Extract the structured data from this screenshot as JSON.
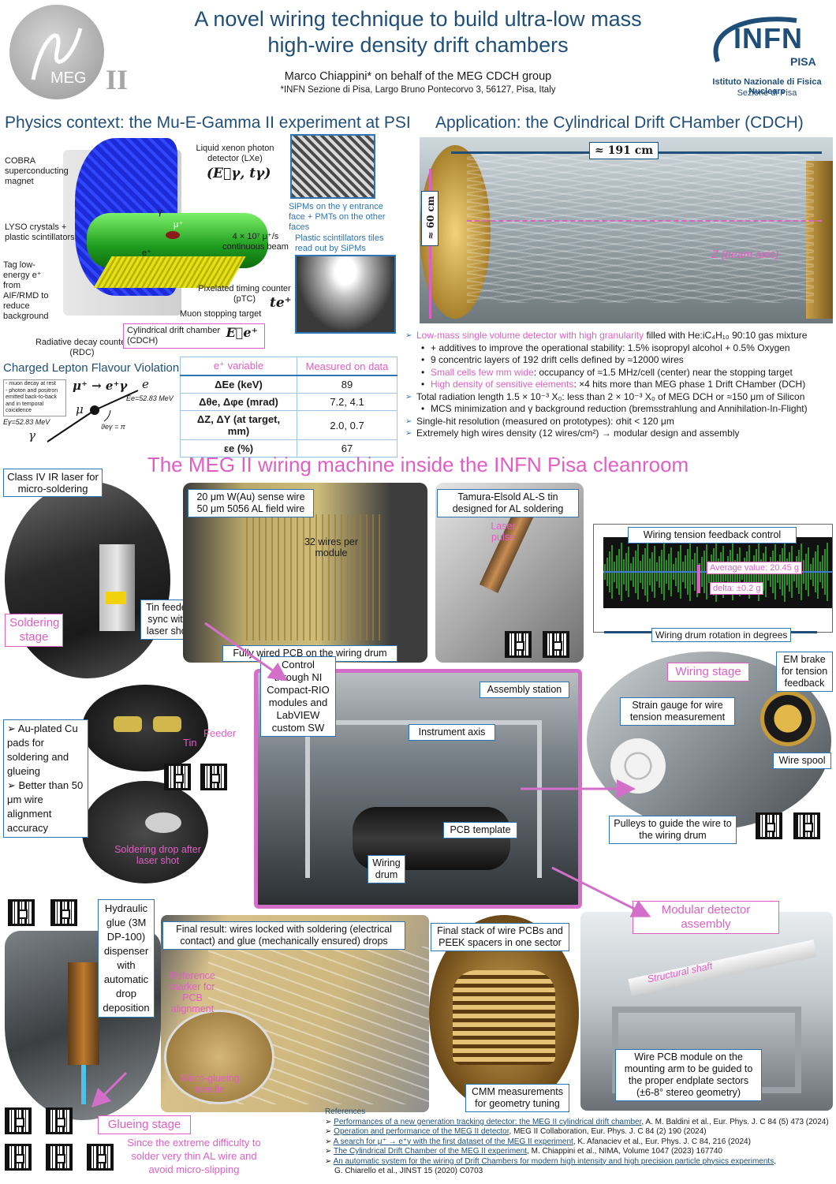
{
  "header": {
    "title_line1": "A novel wiring technique to build ultra-low mass",
    "title_line2": "high-wire density drift chambers",
    "author": "Marco Chiappini* on behalf of the MEG CDCH group",
    "affiliation": "*INFN Sezione di Pisa, Largo Bruno Pontecorvo 3, 56127, Pisa, Italy"
  },
  "logos": {
    "meg_text": "MEG",
    "meg_roman": "II",
    "infn_text": "INFN",
    "infn_pisa": "PISA",
    "infn_line1": "Istituto Nazionale di Fisica Nucleare",
    "infn_line2": "Sezione di Pisa"
  },
  "physics": {
    "heading": "Physics context: the Mu-E-Gamma II experiment at PSI",
    "labels": {
      "cobra": "COBRA superconducting magnet",
      "lxe": "Liquid xenon photon detector (LXe)",
      "lxe_formula": "(E⃗γ, tγ)",
      "lyso": "LYSO crystals + plastic scintillators",
      "tag": "Tag low-energy e⁺ from AIF/RMD to reduce background",
      "rdc": "Radiative decay counter (RDC)",
      "cdch": "Cylindrical drift chamber (CDCH)",
      "cdch_formula": "E⃗e⁺",
      "muon_target": "Muon stopping target",
      "ptc": "Pixelated timing counter (pTC)",
      "ptc_formula": "te⁺",
      "beam": "4 × 10⁷ μ⁺/s continuous beam",
      "sipm": "SiPMs on the γ entrance face + PMTs on the other faces",
      "plastic": "Plastic scintillators tiles read out by SiPMs",
      "gamma": "γ",
      "eplus": "e⁺",
      "muplus": "μ⁺"
    }
  },
  "clfv": {
    "heading": "Charged Lepton Flavour Violation",
    "formula": "μ⁺ → e⁺γ",
    "notes": [
      "- muon decay at rest",
      "- photon and positron",
      "emitted back-to-back",
      "and in temporal",
      "coicidence"
    ],
    "e_gamma": "Eγ=52.83 MeV",
    "e_e": "Ee=52.83 MeV",
    "theta": "ϑeγ = π",
    "mu": "μ",
    "e": "e",
    "gamma": "γ"
  },
  "table": {
    "headers": [
      "e⁺ variable",
      "Measured on data"
    ],
    "rows": [
      [
        "ΔEe (keV)",
        "89"
      ],
      [
        "Δθe, Δφe (mrad)",
        "7.2, 4.1"
      ],
      [
        "ΔZ, ΔY (at target, mm)",
        "2.0, 0.7"
      ],
      [
        "εe (%)",
        "67"
      ]
    ]
  },
  "application": {
    "heading": "Application: the Cylindrical Drift CHamber (CDCH)",
    "length": "≈ 191 cm",
    "diameter": "≈ 60 cm",
    "axis": "Z (beam axis)",
    "bullets": [
      {
        "pink": "Low-mass single volume detector with high granularity",
        "text": " filled with He:iC₄H₁₀ 90:10 gas mixture",
        "sub": false
      },
      {
        "pink": "",
        "text": "+ additives to improve the operational stability: 1.5% isopropyl alcohol + 0.5% Oxygen",
        "sub": true
      },
      {
        "pink": "",
        "text": "9 concentric layers of 192 drift cells defined by ≈12000 wires",
        "sub": true
      },
      {
        "pink": "Small cells few mm wide",
        "text": ": occupancy of ≈1.5 MHz/cell (center) near the stopping target",
        "sub": true
      },
      {
        "pink": "High density of sensitive elements",
        "text": ": ×4 hits more than MEG phase 1 Drift CHamber (DCH)",
        "sub": true
      },
      {
        "pink": "",
        "text": "Total radiation length 1.5 × 10⁻³ X₀: less than 2 × 10⁻³ X₀ of MEG DCH or ≈150 μm of Silicon",
        "sub": false
      },
      {
        "pink": "",
        "text": "MCS minimization and γ background reduction (bremsstrahlung and Annihilation-In-Flight)",
        "sub": true
      },
      {
        "pink": "",
        "text": "Single-hit resolution (measured on prototypes): σhit < 120 μm",
        "sub": false
      },
      {
        "pink": "",
        "text": "Extremely high wires density (12 wires/cm²) → modular design and assembly",
        "sub": false
      }
    ]
  },
  "wiring": {
    "heading": "The MEG II wiring machine inside the INFN Pisa cleanroom",
    "laser": "Class IV IR laser for micro-soldering",
    "soldering_stage": "Soldering stage",
    "tin_feeder": "Tin feeder sync with laser shot",
    "wires": "20 μm W(Au) sense wire 50 μm 5056 AL field wire",
    "wires_per_module": "32 wires per module",
    "fully_wired": "Fully wired PCB on the wiring drum",
    "tin": "Tamura-Elsold AL-S tin designed for AL soldering",
    "laser_pulse": "Laser pulse",
    "tension_title": "Wiring tension feedback control",
    "tension_avg": "Average value: 20.45 g",
    "tension_delta": "delta: ±0.2 g",
    "tension_axis": "Wiring drum rotation in degrees",
    "pads_bullets": [
      "Au-plated Cu pads for soldering and glueing",
      "Better than 50 μm wire alignment accuracy"
    ],
    "feeder": "Feeder",
    "tin_label": "Tin",
    "solder_drop": "Soldering drop after laser shot",
    "control": "Control through NI Compact-RIO modules and LabVIEW custom SW",
    "assembly_station": "Assembly station",
    "instrument_axis": "Instrument axis",
    "pcb_template": "PCB template",
    "wiring_drum": "Wiring drum",
    "wiring_stage": "Wiring stage",
    "em_brake": "EM brake for tension feedback",
    "strain_gauge": "Strain gauge for wire tension measurement",
    "wire_spool": "Wire spool",
    "pulleys": "Pulleys to guide the wire to the wiring drum",
    "glue": "Hydraulic glue (3M DP-100) dispenser with automatic drop deposition",
    "final_result": "Final result: wires locked with soldering (electrical contact) and glue (mechanically ensured) drops",
    "ref_marker": "Reference marker for PCB alignment",
    "micro_glue": "Micro-glueing needle",
    "glueing_stage": "Glueing stage",
    "glue_note": "Since the extreme difficulty to solder very thin AL wire and avoid micro-slipping",
    "final_stack": "Final stack of wire PCBs and PEEK spacers in one sector",
    "cmm": "CMM measurements for geometry tuning",
    "modular": "Modular detector assembly",
    "shaft": "Structural shaft",
    "mounting": "Wire PCB module on the mounting arm to be guided to the proper endplate sectors (±6-8° stereo geometry)"
  },
  "references": {
    "heading": "References",
    "items": [
      {
        "link": "Performances of a new generation tracking detector: the MEG II cylindrical drift chamber",
        "rest": ", A. M. Baldini et al., Eur. Phys. J. C 84 (5) 473 (2024)"
      },
      {
        "link": "Operation and performance of the MEG II detector",
        "rest": ", MEG II Collaboration, Eur. Phys. J. C 84 (2) 190 (2024)"
      },
      {
        "link": "A search for μ⁺ → e⁺γ with the first dataset of the MEG II experiment",
        "rest": ", K. Afanaciev et al., Eur. Phys. J. C 84, 216 (2024)"
      },
      {
        "link": "The Cylindrical Drift Chamber of the MEG II experiment",
        "rest": ", M. Chiappini et al., NIMA, Volume 1047 (2023) 167740"
      },
      {
        "link": "An automatic system for the wiring of Drift Chambers for modern high intensity and high precision particle physics experiments",
        "rest": ","
      },
      {
        "link": "",
        "rest": "G. Chiarello et al., JINST 15 (2020) C0703"
      }
    ]
  },
  "colors": {
    "title": "#1f4e79",
    "accent": "#e05fc4",
    "border": "#2e75b6",
    "photo_frame": "#d36fc9"
  }
}
